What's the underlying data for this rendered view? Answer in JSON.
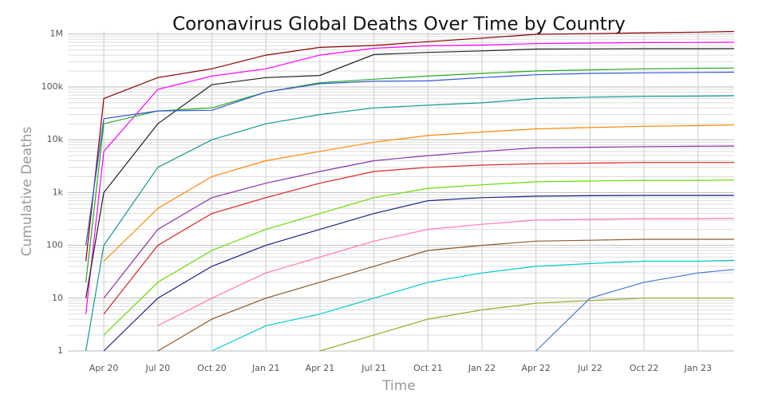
{
  "chart_data": {
    "type": "line",
    "title": "Coronavirus Global Deaths Over Time by Country",
    "x_label": "Time",
    "y_label": "Cumulative Deaths",
    "log_y": true,
    "grid": true,
    "x": [
      "2020-02",
      "2020-03",
      "2020-04",
      "2020-07",
      "2020-10",
      "2021-01",
      "2021-04",
      "2021-07",
      "2021-10",
      "2022-01",
      "2022-04",
      "2022-07",
      "2022-10",
      "2023-01",
      "2023-03"
    ],
    "xlim": [
      "2020-02",
      "2023-03"
    ],
    "xticks": [
      {
        "value": "2020-04",
        "label": "Apr 20"
      },
      {
        "value": "2020-07",
        "label": "Jul 20"
      },
      {
        "value": "2020-10",
        "label": "Oct 20"
      },
      {
        "value": "2021-01",
        "label": "Jan 21"
      },
      {
        "value": "2021-04",
        "label": "Apr 21"
      },
      {
        "value": "2021-07",
        "label": "Jul 21"
      },
      {
        "value": "2021-10",
        "label": "Oct 21"
      },
      {
        "value": "2022-01",
        "label": "Jan 22"
      },
      {
        "value": "2022-04",
        "label": "Apr 22"
      },
      {
        "value": "2022-07",
        "label": "Jul 22"
      },
      {
        "value": "2022-10",
        "label": "Oct 22"
      },
      {
        "value": "2023-01",
        "label": "Jan 23"
      }
    ],
    "ylim": [
      1,
      1100000
    ],
    "yticks": [
      1,
      10,
      100,
      {
        "value": 1000,
        "label": "1k"
      },
      {
        "value": 10000,
        "label": "10k"
      },
      {
        "value": 100000,
        "label": "100k"
      },
      {
        "value": 1000000,
        "label": "1M"
      }
    ],
    "series": [
      {
        "color": "#8b0000",
        "values": [
          null,
          50,
          60000,
          150000,
          220000,
          400000,
          560000,
          610000,
          720000,
          840000,
          990000,
          1020000,
          1060000,
          1090000,
          1120000
        ]
      },
      {
        "color": "#ff00ff",
        "values": [
          null,
          5,
          6000,
          90000,
          160000,
          220000,
          400000,
          540000,
          600000,
          620000,
          660000,
          675000,
          690000,
          695000,
          700000
        ]
      },
      {
        "color": "#222222",
        "values": [
          null,
          10,
          1000,
          20000,
          110000,
          150000,
          165000,
          410000,
          450000,
          480000,
          520000,
          525000,
          530000,
          530000,
          531000
        ]
      },
      {
        "color": "#22aa22",
        "values": [
          null,
          20,
          20000,
          35000,
          40000,
          80000,
          120000,
          140000,
          160000,
          180000,
          200000,
          210000,
          220000,
          225000,
          228000
        ]
      },
      {
        "color": "#3355dd",
        "values": [
          null,
          100,
          25000,
          35000,
          36000,
          80000,
          115000,
          128000,
          130000,
          150000,
          170000,
          180000,
          185000,
          188000,
          190000
        ]
      },
      {
        "color": "#119999",
        "values": [
          null,
          1,
          100,
          3000,
          10000,
          20000,
          30000,
          40000,
          45000,
          50000,
          60000,
          64000,
          66000,
          67000,
          68000
        ]
      },
      {
        "color": "#ff8800",
        "values": [
          null,
          null,
          50,
          500,
          2000,
          4000,
          6000,
          9000,
          12000,
          14000,
          16000,
          17000,
          18000,
          18500,
          19000
        ]
      },
      {
        "color": "#8833aa",
        "values": [
          null,
          null,
          10,
          200,
          800,
          1500,
          2500,
          4000,
          5000,
          6000,
          7000,
          7200,
          7400,
          7500,
          7600
        ]
      },
      {
        "color": "#dd2222",
        "values": [
          null,
          null,
          5,
          100,
          400,
          800,
          1500,
          2500,
          3000,
          3300,
          3500,
          3600,
          3700,
          3700,
          3700
        ]
      },
      {
        "color": "#66dd00",
        "values": [
          null,
          null,
          2,
          20,
          80,
          200,
          400,
          800,
          1200,
          1400,
          1600,
          1650,
          1700,
          1700,
          1720
        ]
      },
      {
        "color": "#1a237e",
        "values": [
          null,
          null,
          1,
          10,
          40,
          100,
          200,
          400,
          700,
          800,
          850,
          870,
          880,
          880,
          880
        ]
      },
      {
        "color": "#ff77bb",
        "values": [
          null,
          null,
          null,
          3,
          10,
          30,
          60,
          120,
          200,
          250,
          300,
          310,
          320,
          320,
          325
        ]
      },
      {
        "color": "#8b5a2b",
        "values": [
          null,
          null,
          null,
          1,
          4,
          10,
          20,
          40,
          80,
          100,
          120,
          125,
          130,
          130,
          130
        ]
      },
      {
        "color": "#00cccc",
        "values": [
          null,
          null,
          null,
          null,
          1,
          3,
          5,
          10,
          20,
          30,
          40,
          45,
          50,
          50,
          52
        ]
      },
      {
        "color": "#99aa22",
        "values": [
          null,
          null,
          null,
          null,
          null,
          null,
          1,
          2,
          4,
          6,
          8,
          9,
          10,
          10,
          10
        ]
      },
      {
        "color": "#4477cc",
        "values": [
          null,
          null,
          null,
          null,
          null,
          null,
          null,
          null,
          null,
          null,
          1,
          10,
          20,
          30,
          35
        ]
      }
    ]
  }
}
